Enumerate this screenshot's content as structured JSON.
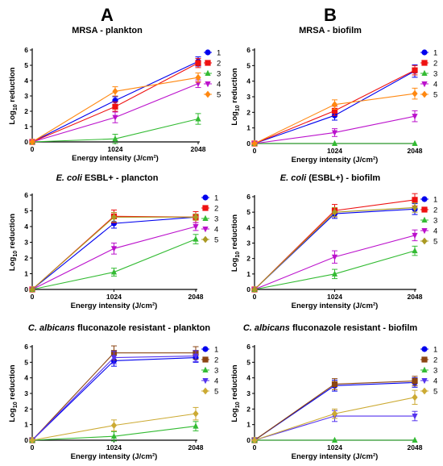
{
  "columns": [
    {
      "letter": "A"
    },
    {
      "letter": "B"
    }
  ],
  "chart_data": [
    {
      "type": "line",
      "title_parts": [
        {
          "text": "MRSA - plankton",
          "italic": false
        }
      ],
      "xlabel": "Energy intensity (J/cm²)",
      "ylabel_main": "Log",
      "ylabel_sub": "10",
      "ylabel_rest": " reduction",
      "x": [
        0,
        1024,
        2048
      ],
      "x_ticks": [
        "0",
        "1024",
        "2048"
      ],
      "ylim": [
        0,
        6
      ],
      "y_ticks": [
        0,
        1,
        2,
        3,
        4,
        5,
        6
      ],
      "legend": "right",
      "series": [
        {
          "name": "1",
          "color": "#0000ee",
          "marker": "circle",
          "values": [
            0,
            2.7,
            5.25
          ],
          "errors": [
            0,
            0.25,
            0.3
          ]
        },
        {
          "name": "2",
          "color": "#ee1111",
          "marker": "square",
          "values": [
            0,
            2.3,
            5.15
          ],
          "errors": [
            0,
            0.3,
            0.3
          ]
        },
        {
          "name": "3",
          "color": "#33bb33",
          "marker": "triangle-up",
          "values": [
            0,
            0.2,
            1.5
          ],
          "errors": [
            0,
            0.3,
            0.35
          ]
        },
        {
          "name": "4",
          "color": "#bb11cc",
          "marker": "triangle-down",
          "values": [
            0,
            1.6,
            3.8
          ],
          "errors": [
            0,
            0.35,
            0.25
          ]
        },
        {
          "name": "5",
          "color": "#ff8811",
          "marker": "diamond",
          "values": [
            0,
            3.3,
            4.2
          ],
          "errors": [
            0,
            0.3,
            0.3
          ]
        }
      ]
    },
    {
      "type": "line",
      "title_parts": [
        {
          "text": "MRSA - biofilm",
          "italic": false
        }
      ],
      "xlabel": "Energy intensity (J/cm²)",
      "ylabel_main": "Log",
      "ylabel_sub": "10",
      "ylabel_rest": " reduction",
      "x": [
        0,
        1024,
        2048
      ],
      "x_ticks": [
        "0",
        "1024",
        "2048"
      ],
      "ylim": [
        0,
        6
      ],
      "y_ticks": [
        0,
        1,
        2,
        3,
        4,
        5,
        6
      ],
      "legend": "right",
      "series": [
        {
          "name": "1",
          "color": "#0000ee",
          "marker": "circle",
          "values": [
            0,
            1.8,
            4.65
          ],
          "errors": [
            0,
            0.3,
            0.4
          ]
        },
        {
          "name": "2",
          "color": "#ee1111",
          "marker": "square",
          "values": [
            0,
            2.1,
            4.7
          ],
          "errors": [
            0,
            0.3,
            0.3
          ]
        },
        {
          "name": "3",
          "color": "#33bb33",
          "marker": "triangle-up",
          "values": [
            0,
            0.0,
            0.0
          ],
          "errors": [
            0,
            0,
            0
          ]
        },
        {
          "name": "4",
          "color": "#bb11cc",
          "marker": "triangle-down",
          "values": [
            0,
            0.7,
            1.75
          ],
          "errors": [
            0,
            0.25,
            0.35
          ]
        },
        {
          "name": "5",
          "color": "#ff8811",
          "marker": "diamond",
          "values": [
            0,
            2.5,
            3.2
          ],
          "errors": [
            0,
            0.3,
            0.35
          ]
        }
      ]
    },
    {
      "type": "line",
      "title_parts": [
        {
          "text": "E. coli",
          "italic": true
        },
        {
          "text": " ESBL+ - plancton",
          "italic": false
        }
      ],
      "xlabel": "Energy intensity (J/cm²)",
      "ylabel_main": "Log",
      "ylabel_sub": "10",
      "ylabel_rest": " reduction",
      "x": [
        0,
        1024,
        2048
      ],
      "x_ticks": [
        "0",
        "1024",
        "2048"
      ],
      "ylim": [
        0,
        6
      ],
      "y_ticks": [
        0,
        1,
        2,
        3,
        4,
        5,
        6
      ],
      "legend": "right",
      "series": [
        {
          "name": "1",
          "color": "#0000ee",
          "marker": "circle",
          "values": [
            0,
            4.2,
            4.6
          ],
          "errors": [
            0,
            0.3,
            0.15
          ]
        },
        {
          "name": "2",
          "color": "#ee1111",
          "marker": "square",
          "values": [
            0,
            4.65,
            4.6
          ],
          "errors": [
            0,
            0.4,
            0.35
          ]
        },
        {
          "name": "3",
          "color": "#33bb33",
          "marker": "triangle-up",
          "values": [
            0,
            1.1,
            3.2
          ],
          "errors": [
            0,
            0.25,
            0.3
          ]
        },
        {
          "name": "4",
          "color": "#bb11cc",
          "marker": "triangle-down",
          "values": [
            0,
            2.6,
            4.0
          ],
          "errors": [
            0,
            0.35,
            0.25
          ]
        },
        {
          "name": "5",
          "color": "#aa9922",
          "marker": "diamond",
          "values": [
            0,
            4.6,
            4.6
          ],
          "errors": [
            0,
            0.3,
            0.2
          ]
        }
      ]
    },
    {
      "type": "line",
      "title_parts": [
        {
          "text": "E. coli",
          "italic": true
        },
        {
          "text": " (ESBL+) - biofilm",
          "italic": false
        }
      ],
      "xlabel": "Energy intensity (J/cm²)",
      "ylabel_main": "Log",
      "ylabel_sub": "10",
      "ylabel_rest": " reduction",
      "x": [
        0,
        1024,
        2048
      ],
      "x_ticks": [
        "0",
        "1024",
        "2048"
      ],
      "ylim": [
        0,
        6
      ],
      "y_ticks": [
        0,
        1,
        2,
        3,
        4,
        5,
        6
      ],
      "legend": "right",
      "series": [
        {
          "name": "1",
          "color": "#0000ee",
          "marker": "circle",
          "values": [
            0,
            4.9,
            5.2
          ],
          "errors": [
            0,
            0.3,
            0.35
          ]
        },
        {
          "name": "2",
          "color": "#ee1111",
          "marker": "square",
          "values": [
            0,
            5.1,
            5.8
          ],
          "errors": [
            0,
            0.4,
            0.4
          ]
        },
        {
          "name": "3",
          "color": "#33bb33",
          "marker": "triangle-up",
          "values": [
            0,
            1.0,
            2.5
          ],
          "errors": [
            0,
            0.3,
            0.3
          ]
        },
        {
          "name": "4",
          "color": "#bb11cc",
          "marker": "triangle-down",
          "values": [
            0,
            2.1,
            3.5
          ],
          "errors": [
            0,
            0.4,
            0.35
          ]
        },
        {
          "name": "5",
          "color": "#aa9922",
          "marker": "diamond",
          "values": [
            0,
            5.0,
            5.3
          ],
          "errors": [
            0,
            0.3,
            0.3
          ]
        }
      ]
    },
    {
      "type": "line",
      "title_parts": [
        {
          "text": "C. albicans",
          "italic": true
        },
        {
          "text": " fluconazole resistant - plankton",
          "italic": false
        }
      ],
      "xlabel": "Energy intensity (J/cm²)",
      "ylabel_main": "Log",
      "ylabel_sub": "10",
      "ylabel_rest": " reduction",
      "x": [
        0,
        1024,
        2048
      ],
      "x_ticks": [
        "0",
        "1024",
        "2048"
      ],
      "ylim": [
        0,
        6
      ],
      "y_ticks": [
        0,
        1,
        2,
        3,
        4,
        5,
        6
      ],
      "legend": "right",
      "series": [
        {
          "name": "1",
          "color": "#0000ee",
          "marker": "circle",
          "values": [
            0,
            5.1,
            5.3
          ],
          "errors": [
            0,
            0.35,
            0.3
          ]
        },
        {
          "name": "2",
          "color": "#8b4513",
          "marker": "square",
          "values": [
            0,
            5.6,
            5.6
          ],
          "errors": [
            0,
            0.45,
            0.4
          ]
        },
        {
          "name": "3",
          "color": "#33bb33",
          "marker": "triangle-up",
          "values": [
            0,
            0.25,
            0.9
          ],
          "errors": [
            0,
            0.3,
            0.3
          ]
        },
        {
          "name": "4",
          "color": "#5533ee",
          "marker": "triangle-down",
          "values": [
            0,
            5.3,
            5.4
          ],
          "errors": [
            0,
            0.4,
            0.35
          ]
        },
        {
          "name": "5",
          "color": "#ccaa33",
          "marker": "diamond",
          "values": [
            0,
            0.95,
            1.7
          ],
          "errors": [
            0,
            0.35,
            0.4
          ]
        }
      ]
    },
    {
      "type": "line",
      "title_parts": [
        {
          "text": "C. albicans",
          "italic": true
        },
        {
          "text": " fluconazole resistant - biofilm",
          "italic": false
        }
      ],
      "xlabel": "Energy intensity (J/cm²)",
      "ylabel_main": "Log",
      "ylabel_sub": "10",
      "ylabel_rest": " reduction",
      "x": [
        0,
        1024,
        2048
      ],
      "x_ticks": [
        "0",
        "1024",
        "2048"
      ],
      "ylim": [
        0,
        6
      ],
      "y_ticks": [
        0,
        1,
        2,
        3,
        4,
        5,
        6
      ],
      "legend": "right",
      "series": [
        {
          "name": "1",
          "color": "#0000ee",
          "marker": "circle",
          "values": [
            0,
            3.5,
            3.7
          ],
          "errors": [
            0,
            0.35,
            0.3
          ]
        },
        {
          "name": "2",
          "color": "#8b4513",
          "marker": "square",
          "values": [
            0,
            3.6,
            3.8
          ],
          "errors": [
            0,
            0.35,
            0.3
          ]
        },
        {
          "name": "3",
          "color": "#33bb33",
          "marker": "triangle-up",
          "values": [
            0,
            0.0,
            0.0
          ],
          "errors": [
            0,
            0,
            0
          ]
        },
        {
          "name": "4",
          "color": "#5533ee",
          "marker": "triangle-down",
          "values": [
            0,
            1.55,
            1.55
          ],
          "errors": [
            0,
            0.35,
            0.3
          ]
        },
        {
          "name": "5",
          "color": "#ccaa33",
          "marker": "diamond",
          "values": [
            0,
            1.7,
            2.75
          ],
          "errors": [
            0,
            0.3,
            0.45
          ]
        }
      ]
    }
  ]
}
